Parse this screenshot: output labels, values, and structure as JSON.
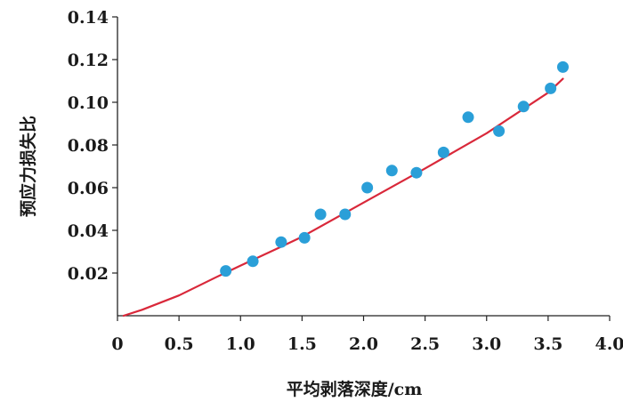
{
  "chart_data": {
    "type": "scatter",
    "xlabel": "平均剥落深度/cm",
    "ylabel": "预应力损失比",
    "xlim": [
      0,
      4.0
    ],
    "ylim": [
      0,
      0.14
    ],
    "x_ticks": [
      "0",
      "0.5",
      "1.0",
      "1.5",
      "2.0",
      "2.5",
      "3.0",
      "3.5",
      "4.0"
    ],
    "y_ticks": [
      "0.02",
      "0.04",
      "0.06",
      "0.08",
      "0.10",
      "0.12",
      "0.14"
    ],
    "grid": false,
    "series": [
      {
        "kind": "scatter",
        "color": "#2a9fd8",
        "points": [
          [
            0.88,
            0.021
          ],
          [
            1.1,
            0.0255
          ],
          [
            1.33,
            0.0345
          ],
          [
            1.52,
            0.0365
          ],
          [
            1.65,
            0.0475
          ],
          [
            1.85,
            0.0475
          ],
          [
            2.03,
            0.06
          ],
          [
            2.23,
            0.068
          ],
          [
            2.43,
            0.067
          ],
          [
            2.65,
            0.0765
          ],
          [
            2.85,
            0.093
          ],
          [
            3.1,
            0.0865
          ],
          [
            3.3,
            0.098
          ],
          [
            3.52,
            0.1065
          ],
          [
            3.62,
            0.1165
          ]
        ]
      },
      {
        "kind": "line",
        "color": "#d9283a",
        "points": [
          [
            0.05,
            0.0
          ],
          [
            0.2,
            0.0028
          ],
          [
            0.5,
            0.0095
          ],
          [
            0.8,
            0.018
          ],
          [
            1.0,
            0.0235
          ],
          [
            1.3,
            0.0315
          ],
          [
            1.5,
            0.037
          ],
          [
            2.0,
            0.053
          ],
          [
            2.5,
            0.069
          ],
          [
            3.0,
            0.0855
          ],
          [
            3.5,
            0.1045
          ],
          [
            3.62,
            0.111
          ]
        ]
      }
    ]
  }
}
